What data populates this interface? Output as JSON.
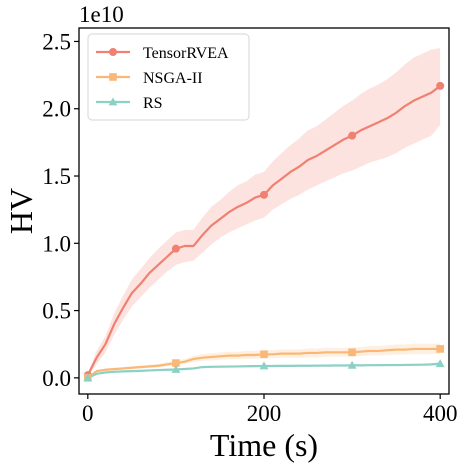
{
  "chart_data": {
    "type": "line",
    "title": "",
    "xlabel": "Time (s)",
    "ylabel": "HV",
    "y_offset_label": "1e10",
    "xlim": [
      -10,
      410
    ],
    "ylim": [
      -0.12,
      2.6
    ],
    "x_ticks": [
      0,
      200,
      400
    ],
    "x_tick_labels": [
      "0",
      "200",
      "400"
    ],
    "y_ticks": [
      0.0,
      0.5,
      1.0,
      1.5,
      2.0,
      2.5
    ],
    "y_tick_labels": [
      "0.0",
      "0.5",
      "1.0",
      "1.5",
      "2.0",
      "2.5"
    ],
    "grid": false,
    "legend_position": "top-left",
    "markers_at": [
      0,
      100,
      200,
      300,
      400
    ],
    "series": [
      {
        "name": "TensorRVEA",
        "color": "#f08070",
        "marker": "circle",
        "x": [
          0,
          10,
          20,
          30,
          40,
          50,
          60,
          70,
          80,
          90,
          100,
          110,
          120,
          130,
          140,
          150,
          160,
          170,
          180,
          190,
          200,
          210,
          220,
          230,
          240,
          250,
          260,
          270,
          280,
          290,
          300,
          310,
          320,
          330,
          340,
          350,
          360,
          370,
          380,
          390,
          400
        ],
        "values": [
          0.02,
          0.15,
          0.25,
          0.4,
          0.52,
          0.63,
          0.7,
          0.78,
          0.84,
          0.9,
          0.96,
          0.98,
          0.98,
          1.06,
          1.13,
          1.18,
          1.23,
          1.27,
          1.3,
          1.34,
          1.36,
          1.43,
          1.48,
          1.53,
          1.57,
          1.62,
          1.65,
          1.69,
          1.73,
          1.77,
          1.8,
          1.84,
          1.87,
          1.9,
          1.93,
          1.97,
          2.02,
          2.06,
          2.09,
          2.12,
          2.17
        ],
        "lower": [
          0.01,
          0.1,
          0.19,
          0.32,
          0.43,
          0.53,
          0.6,
          0.67,
          0.73,
          0.79,
          0.84,
          0.86,
          0.87,
          0.93,
          0.99,
          1.04,
          1.08,
          1.11,
          1.14,
          1.17,
          1.19,
          1.25,
          1.29,
          1.33,
          1.36,
          1.4,
          1.43,
          1.46,
          1.49,
          1.52,
          1.54,
          1.57,
          1.6,
          1.62,
          1.64,
          1.67,
          1.71,
          1.74,
          1.77,
          1.8,
          1.88
        ],
        "upper": [
          0.03,
          0.2,
          0.31,
          0.48,
          0.61,
          0.73,
          0.81,
          0.89,
          0.96,
          1.02,
          1.08,
          1.1,
          1.1,
          1.19,
          1.27,
          1.32,
          1.38,
          1.43,
          1.46,
          1.51,
          1.53,
          1.61,
          1.67,
          1.73,
          1.78,
          1.84,
          1.87,
          1.92,
          1.97,
          2.02,
          2.06,
          2.11,
          2.15,
          2.18,
          2.22,
          2.27,
          2.33,
          2.38,
          2.41,
          2.44,
          2.45
        ]
      },
      {
        "name": "NSGA-II",
        "color": "#f9b877",
        "marker": "square",
        "x": [
          0,
          10,
          20,
          30,
          40,
          50,
          60,
          70,
          80,
          90,
          100,
          110,
          120,
          130,
          140,
          150,
          160,
          170,
          180,
          190,
          200,
          210,
          220,
          230,
          240,
          250,
          260,
          270,
          280,
          290,
          300,
          310,
          320,
          330,
          340,
          350,
          360,
          370,
          380,
          390,
          400
        ],
        "values": [
          0.0,
          0.05,
          0.06,
          0.065,
          0.07,
          0.075,
          0.08,
          0.085,
          0.09,
          0.1,
          0.11,
          0.12,
          0.14,
          0.15,
          0.155,
          0.16,
          0.165,
          0.165,
          0.17,
          0.17,
          0.175,
          0.175,
          0.18,
          0.18,
          0.18,
          0.185,
          0.185,
          0.19,
          0.19,
          0.19,
          0.19,
          0.195,
          0.2,
          0.2,
          0.205,
          0.21,
          0.21,
          0.215,
          0.215,
          0.215,
          0.215
        ],
        "lower": [
          0.0,
          0.04,
          0.05,
          0.055,
          0.06,
          0.065,
          0.07,
          0.074,
          0.078,
          0.086,
          0.094,
          0.102,
          0.118,
          0.126,
          0.13,
          0.134,
          0.138,
          0.138,
          0.142,
          0.142,
          0.146,
          0.146,
          0.15,
          0.15,
          0.15,
          0.154,
          0.154,
          0.158,
          0.158,
          0.158,
          0.158,
          0.162,
          0.166,
          0.166,
          0.17,
          0.174,
          0.174,
          0.178,
          0.178,
          0.178,
          0.178
        ],
        "upper": [
          0.0,
          0.06,
          0.07,
          0.075,
          0.08,
          0.086,
          0.092,
          0.098,
          0.104,
          0.116,
          0.128,
          0.14,
          0.164,
          0.176,
          0.182,
          0.188,
          0.194,
          0.194,
          0.2,
          0.2,
          0.206,
          0.206,
          0.212,
          0.212,
          0.212,
          0.218,
          0.218,
          0.224,
          0.224,
          0.224,
          0.224,
          0.23,
          0.236,
          0.236,
          0.242,
          0.248,
          0.248,
          0.254,
          0.254,
          0.254,
          0.254
        ]
      },
      {
        "name": "RS",
        "color": "#8dd0c4",
        "marker": "triangle",
        "x": [
          0,
          10,
          20,
          30,
          40,
          50,
          60,
          70,
          80,
          90,
          100,
          110,
          120,
          130,
          140,
          150,
          160,
          170,
          180,
          190,
          200,
          210,
          220,
          230,
          240,
          250,
          260,
          270,
          280,
          290,
          300,
          310,
          320,
          330,
          340,
          350,
          360,
          370,
          380,
          390,
          400
        ],
        "values": [
          0.0,
          0.03,
          0.04,
          0.045,
          0.048,
          0.05,
          0.052,
          0.055,
          0.058,
          0.06,
          0.062,
          0.066,
          0.07,
          0.08,
          0.082,
          0.083,
          0.084,
          0.085,
          0.086,
          0.087,
          0.088,
          0.088,
          0.089,
          0.089,
          0.09,
          0.09,
          0.091,
          0.091,
          0.092,
          0.092,
          0.093,
          0.093,
          0.094,
          0.094,
          0.095,
          0.095,
          0.096,
          0.097,
          0.098,
          0.1,
          0.105
        ],
        "lower": [
          0.0,
          0.025,
          0.034,
          0.039,
          0.042,
          0.044,
          0.046,
          0.049,
          0.051,
          0.053,
          0.055,
          0.059,
          0.063,
          0.072,
          0.074,
          0.075,
          0.076,
          0.077,
          0.078,
          0.079,
          0.08,
          0.08,
          0.081,
          0.081,
          0.082,
          0.082,
          0.083,
          0.083,
          0.084,
          0.084,
          0.085,
          0.085,
          0.086,
          0.086,
          0.087,
          0.087,
          0.088,
          0.089,
          0.09,
          0.091,
          0.095
        ],
        "upper": [
          0.0,
          0.035,
          0.046,
          0.051,
          0.054,
          0.056,
          0.058,
          0.061,
          0.065,
          0.067,
          0.069,
          0.073,
          0.077,
          0.088,
          0.09,
          0.091,
          0.092,
          0.093,
          0.094,
          0.095,
          0.096,
          0.096,
          0.097,
          0.097,
          0.098,
          0.098,
          0.099,
          0.099,
          0.1,
          0.1,
          0.101,
          0.101,
          0.102,
          0.102,
          0.103,
          0.103,
          0.104,
          0.105,
          0.106,
          0.109,
          0.115
        ]
      }
    ]
  }
}
